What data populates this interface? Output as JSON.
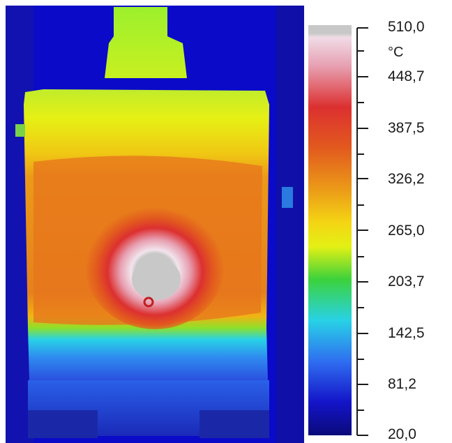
{
  "scale": {
    "unit": "°C",
    "max_label": "510,0",
    "min_label": "20,0",
    "tick_labels": [
      "510,0",
      "448,7",
      "387,5",
      "326,2",
      "265,0",
      "203,7",
      "142,5",
      "81,2",
      "20,0"
    ],
    "colors": {
      "saturation": "#c8c8c8",
      "white_hot": "#f2dde6",
      "pink": "#e7a0b2",
      "red": "#dc3030",
      "orange": "#e7641e",
      "yellow_orange": "#f0b414",
      "yellow": "#e6f014",
      "green": "#3cd23c",
      "cyan": "#28d2e6",
      "blue": "#2f6ef0",
      "deep_blue": "#1414c8",
      "navy": "#0a0a82"
    }
  }
}
